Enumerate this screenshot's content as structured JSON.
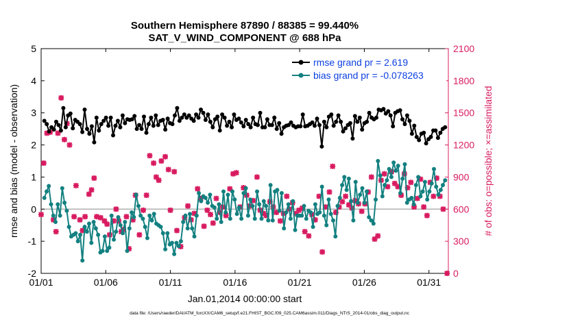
{
  "chart_data": {
    "type": "line",
    "title": [
      "Southern Hemisphere 87890 / 88385 = 99.440%",
      "SAT_V_WIND_COMPONENT @ 688 hPa"
    ],
    "xlabel": "Jan.01,2014 00:00:00 start",
    "ylabel": "rmse and bias (model - observation)",
    "y2label": "# of obs: o=possible; ×=assimilated",
    "footer": "data file: /Users/raeder/DAI/ATM_forcXX/CAM6_setup/f.e21.FHIST_BGC.f09_025.CAM6assim.011/Diags_NTrS_2014-01/obs_diag_output.nc",
    "x_range": [
      0,
      31.5
    ],
    "ylim": [
      -2,
      5
    ],
    "y2lim": [
      0,
      2100
    ],
    "x_ticks": [
      {
        "x": 0,
        "label": "01/01"
      },
      {
        "x": 5,
        "label": "01/06"
      },
      {
        "x": 10,
        "label": "01/11"
      },
      {
        "x": 15,
        "label": "01/16"
      },
      {
        "x": 20,
        "label": "01/21"
      },
      {
        "x": 25,
        "label": "01/26"
      },
      {
        "x": 30,
        "label": "01/31"
      }
    ],
    "y_ticks": [
      -2,
      -1,
      0,
      1,
      2,
      3,
      4,
      5
    ],
    "y2_ticks": [
      0,
      300,
      600,
      900,
      1200,
      1500,
      1800,
      2100
    ],
    "legend_position": "top-right",
    "colors": {
      "rmse": "#000000",
      "bias": "#138080",
      "count": "#d81b60",
      "legend_text": "#0b3fe0",
      "zero_line": "#b0b0b0",
      "axis": "#000000"
    },
    "series": [
      {
        "name": "rmse grand pr = 2.619",
        "values": [
          2.75,
          2.65,
          2.42,
          2.55,
          2.48,
          2.72,
          2.62,
          2.45,
          3.15,
          2.55,
          2.92,
          2.98,
          2.52,
          2.78,
          2.72,
          2.65,
          2.4,
          3.1,
          2.5,
          2.35,
          2.58,
          2.08,
          2.85,
          2.45,
          2.65,
          2.75,
          2.85,
          2.6,
          2.85,
          2.3,
          2.6,
          2.75,
          2.55,
          2.92,
          2.68,
          2.8,
          2.78,
          2.8,
          2.9,
          2.5,
          2.62,
          2.5,
          2.88,
          2.38,
          2.65,
          2.85,
          2.6,
          2.92,
          2.62,
          2.75,
          2.78,
          2.48,
          2.82,
          2.68,
          2.65,
          2.92,
          3.15,
          2.75,
          2.85,
          2.95,
          2.85,
          2.92,
          2.82,
          2.75,
          2.95,
          2.85,
          3.1,
          3.0,
          2.78,
          2.95,
          2.72,
          2.55,
          2.8,
          2.88,
          2.45,
          2.95,
          2.85,
          2.6,
          2.72,
          2.55,
          2.95,
          2.78,
          2.82,
          2.7,
          2.58,
          2.78,
          2.65,
          2.55,
          2.85,
          2.65,
          2.62,
          3.0,
          2.55,
          2.55,
          2.8,
          2.62,
          2.62,
          2.85,
          2.5,
          2.68,
          2.35,
          2.55,
          2.6,
          2.62,
          2.7,
          2.6,
          2.55,
          2.58,
          2.58,
          2.95,
          2.58,
          2.6,
          2.65,
          2.7,
          2.6,
          2.82,
          2.62,
          1.95,
          2.72,
          2.55,
          2.88,
          2.95,
          2.6,
          2.72,
          2.92,
          2.72,
          2.42,
          2.52,
          2.62,
          2.68,
          2.2,
          2.9,
          2.72,
          2.85,
          2.48,
          2.68,
          2.72,
          3.0,
          2.85,
          2.8,
          2.85,
          3.1,
          3.08,
          3.12,
          2.98,
          3.05,
          2.92,
          2.58,
          3.0,
          3.05,
          3.08,
          2.8,
          2.65,
          2.92,
          2.75,
          2.35,
          2.6,
          2.25,
          2.15,
          2.35,
          2.38,
          2.05,
          2.18,
          2.25,
          2.45,
          2.45,
          2.22,
          2.38,
          2.5,
          2.55
        ]
      },
      {
        "name": "bias grand pr = -0.078263",
        "values": [
          0.35,
          0.55,
          0.72,
          0.15,
          -0.2,
          -0.4,
          0.15,
          -0.2,
          0.65,
          0.2,
          -0.05,
          -0.55,
          -0.85,
          -0.8,
          -0.75,
          -1.0,
          -0.8,
          -1.6,
          -0.55,
          -0.7,
          -0.45,
          -1.05,
          -0.4,
          -0.6,
          -0.8,
          -1.35,
          -1.3,
          -0.85,
          -1.3,
          -1.2,
          -0.2,
          -0.95,
          -0.7,
          -0.25,
          -0.5,
          -0.75,
          -0.4,
          -1.3,
          -0.6,
          -0.1,
          -0.25,
          0.45,
          0.1,
          -0.2,
          -0.3,
          -0.55,
          -0.9,
          -0.2,
          -0.35,
          -0.15,
          -0.45,
          -0.5,
          -0.55,
          -0.75,
          -1.25,
          -0.75,
          -1.1,
          -1.05,
          -1.4,
          -1.05,
          -1.15,
          -1.0,
          -0.4,
          -0.2,
          -0.6,
          -0.15,
          -0.6,
          -0.85,
          -0.2,
          0.5,
          0.25,
          0.4,
          0.35,
          0.2,
          0.45,
          0.1,
          0.05,
          -0.3,
          0.15,
          -0.4,
          0.55,
          -0.1,
          0.45,
          -0.3,
          0.55,
          0.3,
          -0.15,
          0.05,
          -0.3,
          0.5,
          0.65,
          -0.2,
          0.3,
          0.1,
          -0.3,
          0.55,
          0.15,
          -0.3,
          0.25,
          0.1,
          -0.35,
          0.75,
          -0.35,
          0.55,
          0.6,
          -0.05,
          0.5,
          -0.6,
          -0.1,
          0.15,
          -0.3,
          0.25,
          -0.65,
          -0.2,
          -0.2,
          -0.2,
          0.1,
          -0.3,
          -0.05,
          -0.1,
          -0.55,
          0.15,
          -0.15,
          -0.1,
          0.7,
          -0.2,
          -0.5,
          0.3,
          -0.15,
          -0.35,
          -0.85,
          0.1,
          0.35,
          0.75,
          1.0,
          0.6,
          0.95,
          0.25,
          -0.35,
          0.85,
          0.2,
          0.45,
          0.65,
          0.2,
          0.55,
          -0.25,
          -0.35,
          -0.45,
          0.3,
          1.5,
          1.05,
          0.4,
          0.75,
          0.9,
          1.25,
          1.0,
          1.45,
          1.2,
          1.35,
          0.5,
          0.95,
          1.4,
          0.2,
          0.3,
          0.35,
          0.15,
          0.75,
          1.0,
          0.4,
          0.55,
          0.85,
          0.3,
          0.55,
          0.8,
          1.25,
          0.7,
          0.45,
          0.6,
          0.75,
          0.9
        ]
      }
    ],
    "assimilated_counts": [
      {
        "x": 0.0,
        "y": 550
      },
      {
        "x": 0.2,
        "y": 1030
      },
      {
        "x": 0.45,
        "y": 1310
      },
      {
        "x": 0.7,
        "y": 1320
      },
      {
        "x": 0.95,
        "y": 500
      },
      {
        "x": 1.15,
        "y": 390
      },
      {
        "x": 1.3,
        "y": 1310
      },
      {
        "x": 1.55,
        "y": 1640
      },
      {
        "x": 1.8,
        "y": 1250
      },
      {
        "x": 2.0,
        "y": 1400
      },
      {
        "x": 2.2,
        "y": 1200
      },
      {
        "x": 2.55,
        "y": 530
      },
      {
        "x": 2.7,
        "y": 820
      },
      {
        "x": 3.0,
        "y": 500
      },
      {
        "x": 3.2,
        "y": 400
      },
      {
        "x": 3.4,
        "y": 530
      },
      {
        "x": 3.7,
        "y": 740
      },
      {
        "x": 3.9,
        "y": 780
      },
      {
        "x": 4.1,
        "y": 890
      },
      {
        "x": 4.3,
        "y": 530
      },
      {
        "x": 4.6,
        "y": 520
      },
      {
        "x": 4.9,
        "y": 490
      },
      {
        "x": 5.1,
        "y": 460
      },
      {
        "x": 5.3,
        "y": 360
      },
      {
        "x": 5.6,
        "y": 490
      },
      {
        "x": 5.8,
        "y": 600
      },
      {
        "x": 6.0,
        "y": 490
      },
      {
        "x": 6.2,
        "y": 390
      },
      {
        "x": 6.35,
        "y": 410
      },
      {
        "x": 6.6,
        "y": 530
      },
      {
        "x": 6.8,
        "y": 230
      },
      {
        "x": 7.1,
        "y": 500
      },
      {
        "x": 7.3,
        "y": 730
      },
      {
        "x": 7.6,
        "y": 360
      },
      {
        "x": 7.9,
        "y": 590
      },
      {
        "x": 8.15,
        "y": 730
      },
      {
        "x": 8.4,
        "y": 1100
      },
      {
        "x": 8.7,
        "y": 1030
      },
      {
        "x": 8.9,
        "y": 900
      },
      {
        "x": 9.1,
        "y": 870
      },
      {
        "x": 9.3,
        "y": 1050
      },
      {
        "x": 9.6,
        "y": 1090
      },
      {
        "x": 9.85,
        "y": 970
      },
      {
        "x": 10.0,
        "y": 590
      },
      {
        "x": 10.3,
        "y": 950
      },
      {
        "x": 10.5,
        "y": 400
      },
      {
        "x": 10.8,
        "y": 250
      },
      {
        "x": 11.1,
        "y": 520
      },
      {
        "x": 11.35,
        "y": 630
      },
      {
        "x": 11.6,
        "y": 500
      },
      {
        "x": 11.85,
        "y": 560
      },
      {
        "x": 12.1,
        "y": 790
      },
      {
        "x": 12.35,
        "y": 700
      },
      {
        "x": 12.6,
        "y": 440
      },
      {
        "x": 12.85,
        "y": 590
      },
      {
        "x": 13.1,
        "y": 550
      },
      {
        "x": 13.3,
        "y": 470
      },
      {
        "x": 13.55,
        "y": 700
      },
      {
        "x": 13.8,
        "y": 570
      },
      {
        "x": 14.05,
        "y": 620
      },
      {
        "x": 14.3,
        "y": 540
      },
      {
        "x": 14.6,
        "y": 790
      },
      {
        "x": 14.85,
        "y": 930
      },
      {
        "x": 15.1,
        "y": 940
      },
      {
        "x": 15.4,
        "y": 620
      },
      {
        "x": 15.65,
        "y": 800
      },
      {
        "x": 15.9,
        "y": 730
      },
      {
        "x": 16.15,
        "y": 630
      },
      {
        "x": 16.4,
        "y": 680
      },
      {
        "x": 16.7,
        "y": 900
      },
      {
        "x": 16.95,
        "y": 590
      },
      {
        "x": 17.2,
        "y": 560
      },
      {
        "x": 17.4,
        "y": 540
      },
      {
        "x": 17.7,
        "y": 670
      },
      {
        "x": 17.95,
        "y": 620
      },
      {
        "x": 18.2,
        "y": 570
      },
      {
        "x": 18.5,
        "y": 490
      },
      {
        "x": 18.75,
        "y": 560
      },
      {
        "x": 19.0,
        "y": 720
      },
      {
        "x": 19.2,
        "y": 600
      },
      {
        "x": 19.45,
        "y": 660
      },
      {
        "x": 19.7,
        "y": 560
      },
      {
        "x": 19.95,
        "y": 590
      },
      {
        "x": 20.2,
        "y": 610
      },
      {
        "x": 20.4,
        "y": 390
      },
      {
        "x": 20.7,
        "y": 350
      },
      {
        "x": 20.95,
        "y": 550
      },
      {
        "x": 21.2,
        "y": 500
      },
      {
        "x": 21.5,
        "y": 720
      },
      {
        "x": 21.75,
        "y": 200
      },
      {
        "x": 22.0,
        "y": 620
      },
      {
        "x": 22.3,
        "y": 760
      },
      {
        "x": 22.55,
        "y": 1000
      },
      {
        "x": 22.8,
        "y": 570
      },
      {
        "x": 23.05,
        "y": 620
      },
      {
        "x": 23.3,
        "y": 670
      },
      {
        "x": 23.55,
        "y": 720
      },
      {
        "x": 23.8,
        "y": 640
      },
      {
        "x": 24.05,
        "y": 610
      },
      {
        "x": 24.3,
        "y": 680
      },
      {
        "x": 24.55,
        "y": 650
      },
      {
        "x": 24.8,
        "y": 580
      },
      {
        "x": 25.05,
        "y": 650
      },
      {
        "x": 25.3,
        "y": 760
      },
      {
        "x": 25.55,
        "y": 900
      },
      {
        "x": 25.8,
        "y": 320
      },
      {
        "x": 26.05,
        "y": 350
      },
      {
        "x": 26.3,
        "y": 870
      },
      {
        "x": 26.55,
        "y": 930
      },
      {
        "x": 26.8,
        "y": 810
      },
      {
        "x": 27.1,
        "y": 950
      },
      {
        "x": 27.35,
        "y": 840
      },
      {
        "x": 27.6,
        "y": 810
      },
      {
        "x": 27.85,
        "y": 730
      },
      {
        "x": 28.1,
        "y": 930
      },
      {
        "x": 28.35,
        "y": 800
      },
      {
        "x": 28.6,
        "y": 850
      },
      {
        "x": 28.85,
        "y": 620
      },
      {
        "x": 29.1,
        "y": 700
      },
      {
        "x": 29.35,
        "y": 880
      },
      {
        "x": 29.6,
        "y": 620
      },
      {
        "x": 29.85,
        "y": 540
      },
      {
        "x": 30.1,
        "y": 850
      },
      {
        "x": 30.35,
        "y": 720
      },
      {
        "x": 30.6,
        "y": 890
      },
      {
        "x": 30.85,
        "y": 720
      },
      {
        "x": 31.1,
        "y": 600
      },
      {
        "x": 31.4,
        "y": 0
      }
    ]
  }
}
